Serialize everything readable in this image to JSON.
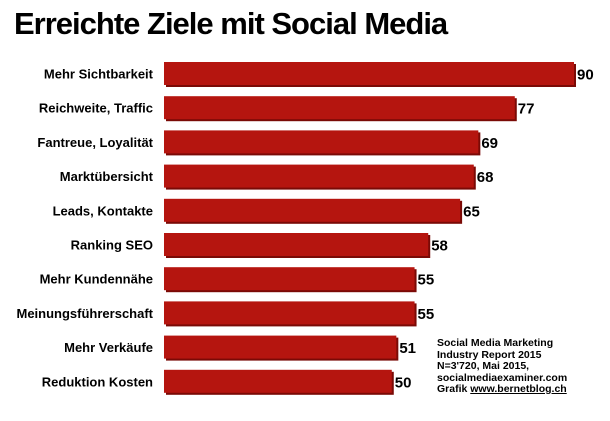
{
  "chart_data": {
    "type": "bar",
    "orientation": "horizontal",
    "title": "Erreichte Ziele mit Social Media",
    "categories": [
      "Mehr Sichtbarkeit",
      "Reichweite, Traffic",
      "Fantreue, Loyalität",
      "Marktübersicht",
      "Leads, Kontakte",
      "Ranking SEO",
      "Mehr Kundennähe",
      "Meinungsführerschaft",
      "Mehr Verkäufe",
      "Reduktion Kosten"
    ],
    "values": [
      90,
      77,
      69,
      68,
      65,
      58,
      55,
      55,
      51,
      50
    ],
    "xlim": [
      0,
      90
    ],
    "grid": false,
    "bar_color": "#b5150f",
    "bar_shadow_color": "#7a0a06"
  },
  "source_note": {
    "line1": "Social Media Marketing",
    "line2": "Industry Report 2015",
    "line3": "N=3'720, Mai 2015,",
    "line4": "socialmediaexaminer.com",
    "line5_prefix": "Grafik ",
    "line5_link": "www.bernetblog.ch"
  }
}
